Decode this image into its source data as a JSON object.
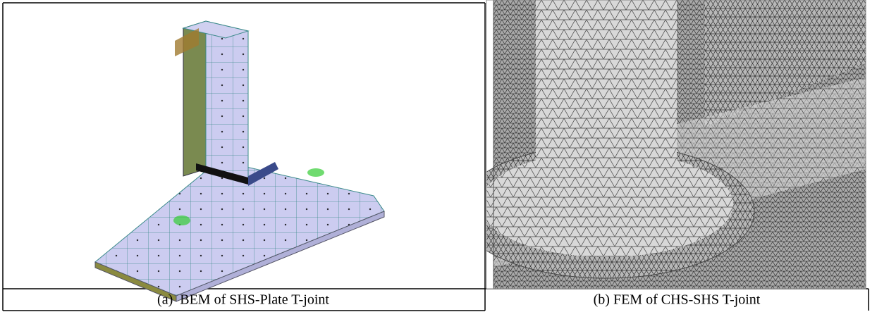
{
  "panels": [
    {
      "caption": "(a)  BEM of SHS-Plate T-joint"
    },
    {
      "caption": "(b) FEM of CHS-SHS T-joint"
    }
  ]
}
